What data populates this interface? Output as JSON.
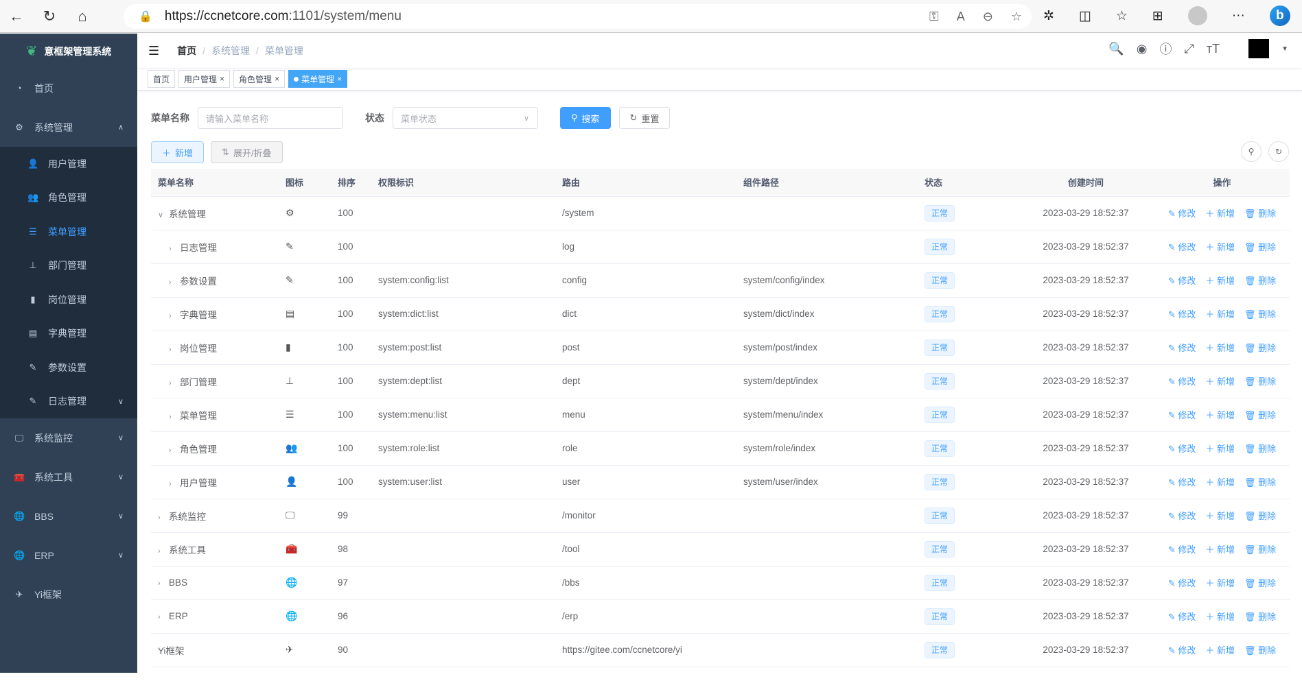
{
  "browser": {
    "url_host": "https://ccnetcore.com",
    "url_path": ":1101/system/menu"
  },
  "sidebar": {
    "title": "意框架管理系统",
    "items": [
      {
        "label": "首页",
        "icon": "dashboard-icon"
      },
      {
        "label": "系统管理",
        "icon": "gear-icon"
      }
    ],
    "subitems": [
      {
        "label": "用户管理",
        "icon": "user-icon"
      },
      {
        "label": "角色管理",
        "icon": "peoples-icon"
      },
      {
        "label": "菜单管理",
        "icon": "tree-table-icon",
        "active": true
      },
      {
        "label": "部门管理",
        "icon": "tree-icon"
      },
      {
        "label": "岗位管理",
        "icon": "post-icon"
      },
      {
        "label": "字典管理",
        "icon": "dict-icon"
      },
      {
        "label": "参数设置",
        "icon": "edit-icon"
      },
      {
        "label": "日志管理",
        "icon": "log-icon",
        "chevron": true
      }
    ],
    "bottom": [
      {
        "label": "系统监控",
        "icon": "monitor-icon",
        "chevron": true
      },
      {
        "label": "系统工具",
        "icon": "tool-icon",
        "chevron": true
      },
      {
        "label": "BBS",
        "icon": "globe-icon",
        "chevron": true
      },
      {
        "label": "ERP",
        "icon": "globe-icon",
        "chevron": true
      },
      {
        "label": "Yi框架",
        "icon": "guide-icon"
      }
    ]
  },
  "breadcrumb": [
    "首页",
    "系统管理",
    "菜单管理"
  ],
  "tags": [
    {
      "label": "首页"
    },
    {
      "label": "用户管理",
      "closable": true
    },
    {
      "label": "角色管理",
      "closable": true
    },
    {
      "label": "菜单管理",
      "closable": true,
      "active": true
    }
  ],
  "search": {
    "name_label": "菜单名称",
    "name_placeholder": "请输入菜单名称",
    "status_label": "状态",
    "status_placeholder": "菜单状态",
    "search_btn": "搜索",
    "reset_btn": "重置"
  },
  "toolbar": {
    "add": "新增",
    "toggle": "展开/折叠"
  },
  "table": {
    "headers": [
      "菜单名称",
      "图标",
      "排序",
      "权限标识",
      "路由",
      "组件路径",
      "状态",
      "创建时间",
      "操作"
    ],
    "ops": [
      "修改",
      "新增",
      "删除"
    ],
    "rows": [
      {
        "name": "系统管理",
        "level": 0,
        "caret": "open",
        "icon": "⚙",
        "sort": "100",
        "perm": "",
        "route": "/system",
        "comp": "",
        "status": "正常",
        "time": "2023-03-29 18:52:37"
      },
      {
        "name": "日志管理",
        "level": 1,
        "caret": "closed",
        "icon": "✎",
        "sort": "100",
        "perm": "",
        "route": "log",
        "comp": "",
        "status": "正常",
        "time": "2023-03-29 18:52:37"
      },
      {
        "name": "参数设置",
        "level": 1,
        "caret": "closed",
        "icon": "✎",
        "sort": "100",
        "perm": "system:config:list",
        "route": "config",
        "comp": "system/config/index",
        "status": "正常",
        "time": "2023-03-29 18:52:37"
      },
      {
        "name": "字典管理",
        "level": 1,
        "caret": "closed",
        "icon": "▤",
        "sort": "100",
        "perm": "system:dict:list",
        "route": "dict",
        "comp": "system/dict/index",
        "status": "正常",
        "time": "2023-03-29 18:52:37"
      },
      {
        "name": "岗位管理",
        "level": 1,
        "caret": "closed",
        "icon": "▮",
        "sort": "100",
        "perm": "system:post:list",
        "route": "post",
        "comp": "system/post/index",
        "status": "正常",
        "time": "2023-03-29 18:52:37"
      },
      {
        "name": "部门管理",
        "level": 1,
        "caret": "closed",
        "icon": "⊥",
        "sort": "100",
        "perm": "system:dept:list",
        "route": "dept",
        "comp": "system/dept/index",
        "status": "正常",
        "time": "2023-03-29 18:52:37"
      },
      {
        "name": "菜单管理",
        "level": 1,
        "caret": "closed",
        "icon": "☰",
        "sort": "100",
        "perm": "system:menu:list",
        "route": "menu",
        "comp": "system/menu/index",
        "status": "正常",
        "time": "2023-03-29 18:52:37"
      },
      {
        "name": "角色管理",
        "level": 1,
        "caret": "closed",
        "icon": "👥",
        "sort": "100",
        "perm": "system:role:list",
        "route": "role",
        "comp": "system/role/index",
        "status": "正常",
        "time": "2023-03-29 18:52:37"
      },
      {
        "name": "用户管理",
        "level": 1,
        "caret": "closed",
        "icon": "👤",
        "sort": "100",
        "perm": "system:user:list",
        "route": "user",
        "comp": "system/user/index",
        "status": "正常",
        "time": "2023-03-29 18:52:37"
      },
      {
        "name": "系统监控",
        "level": 0,
        "caret": "closed",
        "icon": "🖵",
        "sort": "99",
        "perm": "",
        "route": "/monitor",
        "comp": "",
        "status": "正常",
        "time": "2023-03-29 18:52:37"
      },
      {
        "name": "系统工具",
        "level": 0,
        "caret": "closed",
        "icon": "🧰",
        "sort": "98",
        "perm": "",
        "route": "/tool",
        "comp": "",
        "status": "正常",
        "time": "2023-03-29 18:52:37"
      },
      {
        "name": "BBS",
        "level": 0,
        "caret": "closed",
        "icon": "🌐",
        "sort": "97",
        "perm": "",
        "route": "/bbs",
        "comp": "",
        "status": "正常",
        "time": "2023-03-29 18:52:37"
      },
      {
        "name": "ERP",
        "level": 0,
        "caret": "closed",
        "icon": "🌐",
        "sort": "96",
        "perm": "",
        "route": "/erp",
        "comp": "",
        "status": "正常",
        "time": "2023-03-29 18:52:37"
      },
      {
        "name": "Yi框架",
        "level": 0,
        "caret": "none",
        "icon": "✈",
        "sort": "90",
        "perm": "",
        "route": "https://gitee.com/ccnetcore/yi",
        "comp": "",
        "status": "正常",
        "time": "2023-03-29 18:52:37"
      }
    ]
  },
  "colors": {
    "primary": "#409eff",
    "sidebar": "#304156",
    "submenu": "#1f2d3d"
  }
}
